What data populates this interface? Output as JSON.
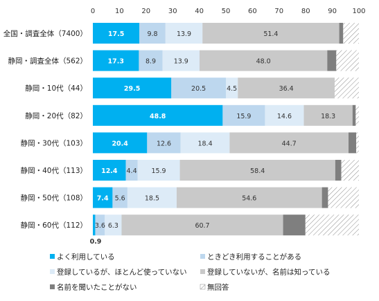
{
  "chart_data": {
    "type": "bar",
    "orientation": "horizontal",
    "stacked": true,
    "xlim": [
      0,
      100
    ],
    "xticks": [
      "0",
      "10",
      "20",
      "30",
      "40",
      "50",
      "60",
      "70",
      "80",
      "90",
      "100"
    ],
    "categories": [
      "全国・調査全体（7400）",
      "静岡・調査全体（562）",
      "静岡・10代（44）",
      "静岡・20代（82）",
      "静岡・30代（103）",
      "静岡・40代（113）",
      "静岡・50代（108）",
      "静岡・60代（112）"
    ],
    "series": [
      {
        "name": "よく利用している",
        "color": "#00b0f0",
        "values": [
          17.5,
          17.3,
          29.5,
          48.8,
          20.4,
          12.4,
          7.4,
          0.9
        ]
      },
      {
        "name": "ときどき利用することがある",
        "color": "#bdd7ee",
        "values": [
          9.8,
          8.9,
          20.5,
          15.9,
          12.6,
          4.4,
          5.6,
          3.6
        ]
      },
      {
        "name": "登録しているが、ほとんど使っていない",
        "color": "#ddebf7",
        "values": [
          13.9,
          13.9,
          4.5,
          14.6,
          18.4,
          15.9,
          18.5,
          6.3
        ]
      },
      {
        "name": "登録していないが、名前は知っている",
        "color": "#c9c9c9",
        "values": [
          51.4,
          48.0,
          36.4,
          18.3,
          44.7,
          58.4,
          54.6,
          60.7
        ]
      },
      {
        "name": "名前を聞いたことがない",
        "color": "#7f7f7f",
        "values": [
          1.5,
          3.4,
          0.0,
          1.2,
          2.9,
          2.3,
          2.3,
          8.4
        ]
      },
      {
        "name": "無回答",
        "color": "#ffffff",
        "pattern": "hatch",
        "values": [
          5.9,
          8.5,
          9.1,
          1.2,
          1.0,
          6.6,
          11.6,
          20.1
        ]
      }
    ],
    "label_text": [
      [
        "17.5",
        "9.8",
        "13.9",
        "51.4",
        "",
        ""
      ],
      [
        "17.3",
        "8.9",
        "13.9",
        "48.0",
        "",
        ""
      ],
      [
        "29.5",
        "20.5",
        "4.5",
        "36.4",
        "",
        ""
      ],
      [
        "48.8",
        "15.9",
        "14.6",
        "18.3",
        "",
        ""
      ],
      [
        "20.4",
        "12.6",
        "18.4",
        "44.7",
        "",
        ""
      ],
      [
        "12.4",
        "4.4",
        "15.9",
        "58.4",
        "",
        ""
      ],
      [
        "7.4",
        "5.6",
        "18.5",
        "54.6",
        "",
        ""
      ],
      [
        "0.9",
        "3.6",
        "6.3",
        "60.7",
        "",
        ""
      ]
    ],
    "legend_position": "bottom",
    "grid": false
  }
}
